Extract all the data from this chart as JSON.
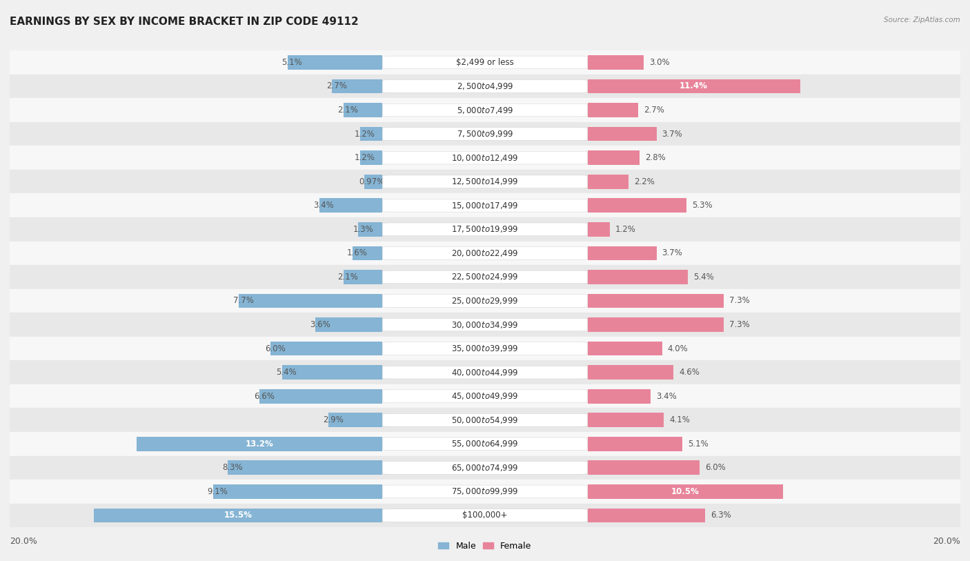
{
  "title": "EARNINGS BY SEX BY INCOME BRACKET IN ZIP CODE 49112",
  "source": "Source: ZipAtlas.com",
  "categories": [
    "$2,499 or less",
    "$2,500 to $4,999",
    "$5,000 to $7,499",
    "$7,500 to $9,999",
    "$10,000 to $12,499",
    "$12,500 to $14,999",
    "$15,000 to $17,499",
    "$17,500 to $19,999",
    "$20,000 to $22,499",
    "$22,500 to $24,999",
    "$25,000 to $29,999",
    "$30,000 to $34,999",
    "$35,000 to $39,999",
    "$40,000 to $44,999",
    "$45,000 to $49,999",
    "$50,000 to $54,999",
    "$55,000 to $64,999",
    "$65,000 to $74,999",
    "$75,000 to $99,999",
    "$100,000+"
  ],
  "male_values": [
    5.1,
    2.7,
    2.1,
    1.2,
    1.2,
    0.97,
    3.4,
    1.3,
    1.6,
    2.1,
    7.7,
    3.6,
    6.0,
    5.4,
    6.6,
    2.9,
    13.2,
    8.3,
    9.1,
    15.5
  ],
  "female_values": [
    3.0,
    11.4,
    2.7,
    3.7,
    2.8,
    2.2,
    5.3,
    1.2,
    3.7,
    5.4,
    7.3,
    7.3,
    4.0,
    4.6,
    3.4,
    4.1,
    5.1,
    6.0,
    10.5,
    6.3
  ],
  "male_color": "#85b4d4",
  "female_color": "#e8849a",
  "background_color": "#f0f0f0",
  "row_bg_light": "#f7f7f7",
  "row_bg_dark": "#e8e8e8",
  "xlim": 20.0,
  "title_fontsize": 11,
  "label_fontsize": 8.5,
  "category_fontsize": 8.5,
  "male_inline_threshold": 10.0,
  "female_inline_threshold": 10.0
}
